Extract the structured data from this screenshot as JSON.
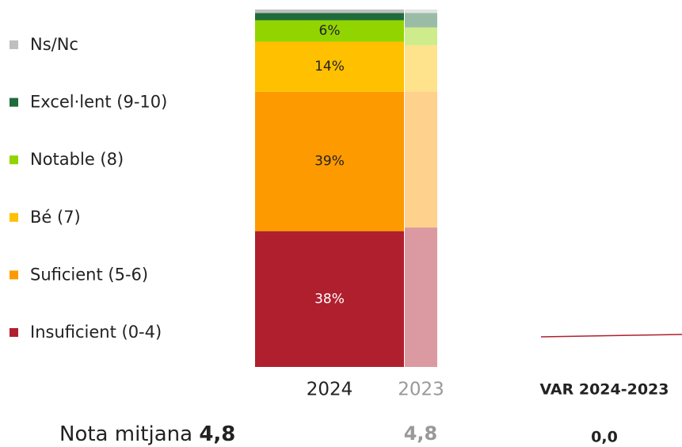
{
  "chart_data": {
    "type": "bar",
    "stacked": true,
    "categories": [
      "2024",
      "2023"
    ],
    "ylim": [
      0,
      100
    ],
    "series": [
      {
        "name": "Insuficient (0-4)",
        "color": "#b01f2e",
        "values": [
          38,
          39
        ],
        "value_labels": [
          "38%",
          null
        ]
      },
      {
        "name": "Suficient (5-6)",
        "color": "#fd9a00",
        "values": [
          39,
          38
        ],
        "value_labels": [
          "39%",
          null
        ]
      },
      {
        "name": "Bé (7)",
        "color": "#ffc000",
        "values": [
          14,
          13
        ],
        "value_labels": [
          "14%",
          null
        ]
      },
      {
        "name": "Notable (8)",
        "color": "#92d400",
        "values": [
          6,
          5
        ],
        "value_labels": [
          "6%",
          null
        ]
      },
      {
        "name": "Excel·lent (9-10)",
        "color": "#1f6b3b",
        "values": [
          2,
          4
        ]
      },
      {
        "name": "Ns/Nc",
        "color": "#bfbfbf",
        "values": [
          1,
          1
        ]
      }
    ],
    "mean_label": "Nota mitjana",
    "means": [
      "4,8",
      "4,8"
    ],
    "var_label": "VAR 2024-2023",
    "var_value": "0,0"
  }
}
